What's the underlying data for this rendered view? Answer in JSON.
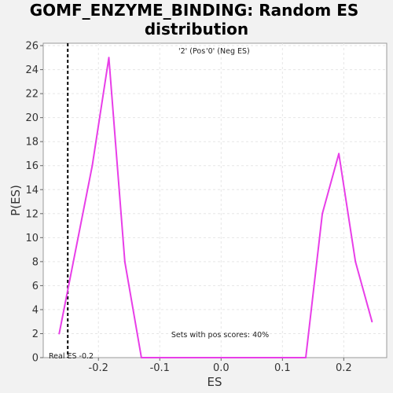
{
  "chart_data": {
    "type": "line",
    "title_line1": "GOMF_ENZYME_BINDING: Random ES",
    "title_line2": "distribution",
    "xlabel": "ES",
    "ylabel": "P(ES)",
    "xlim": [
      -0.29,
      0.27
    ],
    "ylim": [
      0,
      26.2
    ],
    "x_ticks": [
      -0.2,
      -0.1,
      0.0,
      0.1,
      0.2
    ],
    "x_tick_labels": [
      "-0.2",
      "-0.1",
      "0.0",
      "0.1",
      "0.2"
    ],
    "y_ticks": [
      0,
      2,
      4,
      6,
      8,
      10,
      12,
      14,
      16,
      18,
      20,
      22,
      24,
      26
    ],
    "y_tick_labels": [
      "0",
      "2",
      "4",
      "6",
      "8",
      "10",
      "12",
      "14",
      "16",
      "18",
      "20",
      "22",
      "24",
      "26"
    ],
    "grid": true,
    "series": [
      {
        "color": "#e83ee8",
        "x": [
          -0.264,
          -0.21,
          -0.183,
          -0.157,
          -0.13,
          0.0,
          0.138,
          0.165,
          0.192,
          0.219,
          0.246
        ],
        "y": [
          2,
          16,
          25,
          8,
          0,
          0,
          0,
          12,
          17,
          8,
          3
        ]
      }
    ],
    "real_es": {
      "value": -0.25,
      "label": "Real ES -0.2"
    },
    "legend": {
      "pos_text": "'2' (Pos",
      "neg_text": "'0' (Neg ES)",
      "pos_color": "#dd0000",
      "neg_color": "#0000cc"
    },
    "annotation": "Sets with pos scores: 40%"
  }
}
